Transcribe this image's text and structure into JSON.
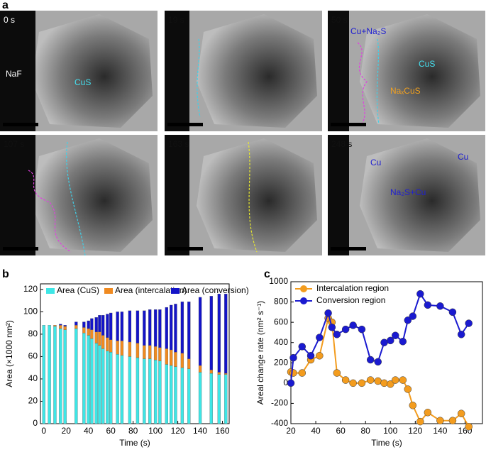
{
  "panel_a": {
    "label": "a",
    "micrographs": [
      {
        "time": "0 s",
        "labels": [
          "NaF",
          "CuS"
        ]
      },
      {
        "time": "19 s",
        "labels": []
      },
      {
        "time": "50 s",
        "labels": [
          "Cu+Na₂S",
          "CuS",
          "NaₓCuS"
        ]
      },
      {
        "time": "107 s",
        "labels": []
      },
      {
        "time": "163 s",
        "labels": []
      },
      {
        "time": "248 s",
        "labels": [
          "Cu",
          "Cu",
          "Na₂S+Cu"
        ]
      }
    ]
  },
  "chart_data": [
    {
      "type": "bar",
      "stacked": true,
      "panel_label": "b",
      "xlabel": "Time (s)",
      "ylabel": "Area (×1000 nm²)",
      "x": [
        0,
        5,
        10,
        15,
        19,
        29,
        36,
        40,
        43,
        47,
        50,
        53,
        57,
        60,
        66,
        70,
        77,
        84,
        90,
        95,
        100,
        104,
        110,
        114,
        118,
        124,
        130,
        140,
        150,
        157,
        163
      ],
      "series": [
        {
          "name": "Area (CuS)",
          "color": "#3ee6e6",
          "values": [
            88,
            88,
            87,
            85,
            84,
            85,
            81,
            79,
            76,
            72,
            70,
            67,
            65,
            64,
            62,
            61,
            60,
            59,
            58,
            58,
            57,
            56,
            53,
            52,
            51,
            50,
            49,
            46,
            45,
            44,
            44
          ]
        },
        {
          "name": "Area (intercalation)",
          "color": "#f08a20",
          "values": [
            0,
            0,
            1,
            3,
            3,
            3,
            5,
            6,
            8,
            10,
            12,
            12,
            12,
            11,
            12,
            13,
            13,
            13,
            12,
            12,
            12,
            12,
            14,
            14,
            13,
            13,
            9,
            6,
            3,
            2,
            1
          ]
        },
        {
          "name": "Area (conversion)",
          "color": "#1414c8",
          "values": [
            0,
            0,
            0,
            1,
            1,
            3,
            5,
            7,
            10,
            13,
            15,
            18,
            21,
            24,
            26,
            26,
            28,
            29,
            31,
            32,
            33,
            34,
            37,
            40,
            43,
            46,
            51,
            61,
            66,
            70,
            71
          ]
        }
      ],
      "xlim": [
        -3,
        166
      ],
      "ylim": [
        0,
        125
      ],
      "xticks": [
        0,
        20,
        40,
        60,
        80,
        100,
        120,
        140,
        160
      ],
      "yticks": [
        0,
        20,
        40,
        60,
        80,
        100,
        120
      ],
      "legend": "top"
    },
    {
      "type": "line",
      "panel_label": "c",
      "xlabel": "Time (s)",
      "ylabel": "Areal change rate (nm² s⁻¹)",
      "x": [
        20,
        22,
        29,
        36,
        43,
        50,
        53,
        57,
        64,
        70,
        77,
        84,
        90,
        95,
        100,
        104,
        110,
        114,
        118,
        124,
        130,
        140,
        150,
        157,
        163
      ],
      "series": [
        {
          "name": "Intercalation region",
          "color": "#f39c1e",
          "values": [
            110,
            100,
            100,
            230,
            270,
            640,
            600,
            100,
            30,
            0,
            0,
            30,
            20,
            0,
            -10,
            30,
            30,
            -60,
            -220,
            -380,
            -290,
            -370,
            -370,
            -300,
            -430
          ]
        },
        {
          "name": "Conversion region",
          "color": "#1a1ad0",
          "values": [
            0,
            250,
            360,
            270,
            450,
            690,
            550,
            480,
            530,
            570,
            530,
            230,
            210,
            400,
            420,
            470,
            410,
            620,
            660,
            880,
            770,
            760,
            700,
            480,
            590
          ]
        }
      ],
      "xlim": [
        20,
        174
      ],
      "ylim": [
        -400,
        1000
      ],
      "xticks": [
        20,
        40,
        60,
        80,
        100,
        120,
        140,
        160
      ],
      "yticks": [
        -400,
        -200,
        0,
        200,
        400,
        600,
        800,
        1000
      ],
      "legend": "upper left"
    }
  ]
}
